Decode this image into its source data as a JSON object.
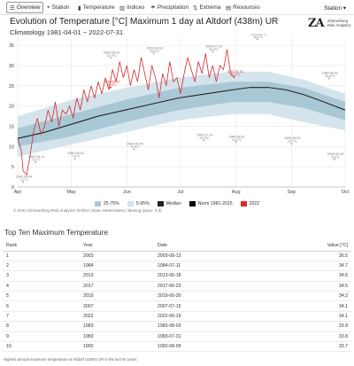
{
  "nav": {
    "tabs": [
      {
        "label": "Overview",
        "icon": "list-icon"
      },
      {
        "label": "Station",
        "icon": "pin-icon"
      },
      {
        "label": "Temperature",
        "icon": "thermometer-icon"
      },
      {
        "label": "Indices",
        "icon": "chart-icon"
      },
      {
        "label": "Precipitation",
        "icon": "rain-icon"
      },
      {
        "label": "Extrema",
        "icon": "extrema-icon"
      },
      {
        "label": "Resources",
        "icon": "book-icon"
      }
    ],
    "station_menu": "Station ▾"
  },
  "header": {
    "title": "Evolution of Temperature [°C] Maximum 1 day at Altdorf (438m) UR",
    "subtitle": "Climatology 1981-04-01 − 2022-07-31",
    "logo_mark": "ZA",
    "logo_line1": "Zimmerberg",
    "logo_line2": "Risk Analytics"
  },
  "chart_data": {
    "type": "line",
    "x_ticks": [
      "Apr",
      "May",
      "Jun",
      "Jul",
      "Aug",
      "Sep",
      "Oct"
    ],
    "ylim": [
      0,
      37
    ],
    "y_ticks": [
      0,
      5,
      10,
      15,
      20,
      25,
      30,
      35
    ],
    "median": [
      [
        0,
        12.0
      ],
      [
        15,
        13.5
      ],
      [
        30,
        15.5
      ],
      [
        45,
        17.5
      ],
      [
        60,
        19.0
      ],
      [
        75,
        20.5
      ],
      [
        90,
        22.0
      ],
      [
        105,
        23.0
      ],
      [
        120,
        24.0
      ],
      [
        130,
        24.6
      ],
      [
        140,
        24.6
      ],
      [
        150,
        24.0
      ],
      [
        160,
        22.8
      ],
      [
        170,
        21.2
      ],
      [
        183,
        19.0
      ]
    ],
    "band_5_95": [
      [
        0,
        7.5,
        17.5
      ],
      [
        30,
        10.5,
        21.5
      ],
      [
        60,
        13.5,
        24.5
      ],
      [
        90,
        16.5,
        27.0
      ],
      [
        120,
        18.0,
        28.5
      ],
      [
        140,
        18.0,
        28.5
      ],
      [
        160,
        16.0,
        26.5
      ],
      [
        183,
        14.0,
        23.0
      ]
    ],
    "band_25_75": [
      [
        0,
        10.0,
        14.5
      ],
      [
        30,
        12.5,
        18.0
      ],
      [
        60,
        16.0,
        21.5
      ],
      [
        90,
        19.0,
        24.5
      ],
      [
        120,
        21.0,
        26.0
      ],
      [
        140,
        21.0,
        26.0
      ],
      [
        160,
        19.5,
        24.5
      ],
      [
        183,
        16.5,
        21.0
      ]
    ],
    "series_2022": [
      [
        0,
        12
      ],
      [
        2,
        9
      ],
      [
        3,
        4
      ],
      [
        5,
        3
      ],
      [
        7,
        8
      ],
      [
        9,
        14
      ],
      [
        11,
        17
      ],
      [
        13,
        13
      ],
      [
        15,
        15
      ],
      [
        17,
        19
      ],
      [
        19,
        16
      ],
      [
        21,
        21
      ],
      [
        23,
        15
      ],
      [
        25,
        19
      ],
      [
        27,
        18
      ],
      [
        29,
        20
      ],
      [
        31,
        17
      ],
      [
        33,
        22
      ],
      [
        35,
        19
      ],
      [
        37,
        24
      ],
      [
        39,
        21
      ],
      [
        41,
        25
      ],
      [
        43,
        22
      ],
      [
        45,
        26
      ],
      [
        47,
        23
      ],
      [
        49,
        27
      ],
      [
        51,
        24
      ],
      [
        53,
        29
      ],
      [
        55,
        26
      ],
      [
        57,
        31
      ],
      [
        59,
        27
      ],
      [
        61,
        30
      ],
      [
        63,
        25
      ],
      [
        65,
        29
      ],
      [
        67,
        26
      ],
      [
        69,
        32
      ],
      [
        71,
        28
      ],
      [
        73,
        24
      ],
      [
        75,
        30
      ],
      [
        77,
        27
      ],
      [
        79,
        22
      ],
      [
        81,
        28
      ],
      [
        83,
        25
      ],
      [
        85,
        31
      ],
      [
        87,
        26
      ],
      [
        89,
        27
      ],
      [
        91,
        23
      ],
      [
        93,
        28
      ],
      [
        95,
        32
      ],
      [
        97,
        29
      ],
      [
        99,
        26
      ],
      [
        101,
        31
      ],
      [
        103,
        28
      ],
      [
        105,
        33
      ],
      [
        107,
        27
      ],
      [
        109,
        30
      ],
      [
        111,
        26
      ],
      [
        113,
        30
      ],
      [
        115,
        29
      ],
      [
        117,
        34
      ],
      [
        119,
        28
      ],
      [
        121,
        27
      ]
    ],
    "annotations": [
      {
        "date": "2003-05-22",
        "value": "31.9°C",
        "day": 52,
        "y": 31.9
      },
      {
        "date": "2022-05-22",
        "value": "24.6°C",
        "day": 52,
        "y": 24.6
      },
      {
        "date": "2003-06-16",
        "value": "33.0°C",
        "day": 76,
        "y": 33.0
      },
      {
        "date": "2003-07-19",
        "value": "33.4°C",
        "day": 109,
        "y": 33.4
      },
      {
        "date": "2003-08-13",
        "value": "36.5°C",
        "day": 134,
        "y": 36.5
      },
      {
        "date": "2022-07-31",
        "value": "27.2°C",
        "day": 121,
        "y": 27.2
      },
      {
        "date": "1984-09-22",
        "value": "26.8°C",
        "day": 174,
        "y": 26.8
      },
      {
        "date": "1981-04-11",
        "value": "6.1°C",
        "day": 10,
        "y": 6.1
      },
      {
        "date": "1981-04-04",
        "value": "1.2°C",
        "day": 3,
        "y": 1.2
      },
      {
        "date": "1980-05-03",
        "value": "7.0°C",
        "day": 32,
        "y": 7.0
      },
      {
        "date": "1980-06-05",
        "value": "9.3°C",
        "day": 65,
        "y": 9.3
      },
      {
        "date": "1981-07-14",
        "value": "11.5°C",
        "day": 104,
        "y": 11.5
      },
      {
        "date": "1980-08-01",
        "value": "11.1°C",
        "day": 122,
        "y": 11.1
      },
      {
        "date": "1981-09-01",
        "value": "10.7°C",
        "day": 153,
        "y": 10.7
      },
      {
        "date": "2008-09-25",
        "value": "6.8°C",
        "day": 177,
        "y": 6.8
      }
    ]
  },
  "legend": [
    {
      "label": "25-75%",
      "color": "#a9c8d6"
    },
    {
      "label": "5-95%",
      "color": "#d4e4ec"
    },
    {
      "label": "Median",
      "color": "#222222"
    },
    {
      "label": "Norm 1981-2015",
      "color": "#000000"
    },
    {
      "label": "2022",
      "color": "#d42a2a"
    }
  ],
  "credit": "© 2022 Zimmerberg Risk Analytics GmbH | Data: MeteoSwiss | Moving (span: 5 d)",
  "table": {
    "title": "Top Ten Maximum Temperature",
    "headers": [
      "Rank",
      "Year",
      "Date",
      "Value [°C]"
    ],
    "rows": [
      [
        "1",
        "2003",
        "2003-08-13",
        "36.5"
      ],
      [
        "2",
        "1984",
        "1984-07-11",
        "34.7"
      ],
      [
        "3",
        "2013",
        "2013-06-18",
        "34.6"
      ],
      [
        "4",
        "2017",
        "2017-06-23",
        "34.5"
      ],
      [
        "5",
        "2019",
        "2019-06-30",
        "34.2"
      ],
      [
        "6",
        "2007",
        "2007-07-15",
        "34.1"
      ],
      [
        "7",
        "2022",
        "2022-06-19",
        "34.1"
      ],
      [
        "8",
        "1983",
        "1983-08-03",
        "33.9"
      ],
      [
        "9",
        "1983",
        "1983-07-31",
        "33.8"
      ],
      [
        "10",
        "1992",
        "1992-08-09",
        "33.7"
      ]
    ],
    "footnote": "Highest annual maximum temperature at Altdorf (438m) UR in the last 40 years."
  }
}
